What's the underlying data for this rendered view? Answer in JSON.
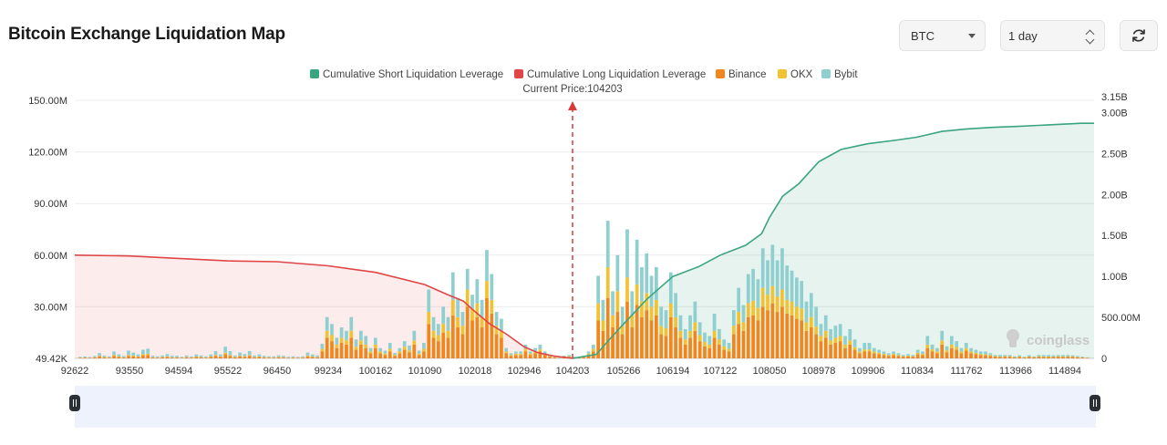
{
  "header": {
    "title": "Bitcoin Exchange Liquidation Map",
    "coin_select": "BTC",
    "range_select": "1 day",
    "refresh_icon": "refresh-icon"
  },
  "colors": {
    "short_cum": "#3aa57e",
    "long_cum": "#e04646",
    "binance": "#f0861c",
    "okx": "#f2c230",
    "bybit": "#8fcfd0"
  },
  "watermark": "coinglass",
  "chart_data": {
    "type": "bar",
    "title": "Bitcoin Exchange Liquidation Map",
    "legend": [
      "Cumulative Short Liquidation Leverage",
      "Cumulative Long Liquidation Leverage",
      "Binance",
      "OKX",
      "Bybit"
    ],
    "legend_position": "top-center",
    "current_price_label": "Current Price:104203",
    "current_price": 104203,
    "x_ticks": [
      "92622",
      "93550",
      "94594",
      "95522",
      "96450",
      "99234",
      "100162",
      "101090",
      "102018",
      "102946",
      "104203",
      "105266",
      "106194",
      "107122",
      "108050",
      "108978",
      "109906",
      "110834",
      "111762",
      "113966",
      "114894"
    ],
    "left_axis": {
      "ticks": [
        "49.42K",
        "30.00M",
        "60.00M",
        "90.00M",
        "120.00M",
        "150.00M"
      ],
      "ylim": [
        0,
        150
      ]
    },
    "right_axis": {
      "ticks": [
        "0",
        "500.00M",
        "1.00B",
        "1.50B",
        "2.00B",
        "2.50B",
        "3.00B",
        "3.15B"
      ],
      "ylim": [
        0,
        3.15
      ]
    },
    "bars_unit": "M USD",
    "stacked_series": [
      {
        "name": "Binance",
        "values": [
          0.3,
          0.4,
          0.3,
          0.5,
          1.2,
          0.6,
          0.4,
          1.5,
          0.8,
          0.5,
          1.5,
          1.2,
          0.8,
          1.8,
          2.0,
          0.5,
          0.4,
          0.6,
          0.9,
          0.5,
          0.5,
          0.3,
          0.6,
          0.4,
          0.8,
          0.6,
          0.4,
          0.8,
          1.5,
          0.8,
          2.5,
          1.5,
          0.6,
          1.2,
          0.9,
          1.5,
          0.6,
          0.8,
          0.5,
          0.4,
          0.4,
          0.6,
          0.5,
          0.3,
          0.4,
          0.3,
          0.4,
          1.2,
          0.8,
          0.6,
          4.0,
          12.0,
          10.0,
          6.0,
          9.0,
          8.0,
          12.0,
          5.0,
          8.0,
          6.0,
          3.0,
          6.0,
          3.0,
          2.0,
          4.0,
          1.5,
          3.0,
          5.0,
          3.5,
          8.0,
          2.0,
          4.0,
          20.0,
          12.0,
          10.0,
          15.0,
          12.0,
          25.0,
          18.0,
          14.0,
          30.0,
          22.0,
          24.0,
          18.0,
          35.0,
          26.0,
          14.0,
          12.0,
          3.0,
          1.5,
          2.0,
          2.0,
          4.0,
          2.0,
          3.0,
          4.0,
          2.0,
          1.0,
          0.5,
          0.2,
          0.8,
          1.0,
          0.5,
          0.3,
          0.6,
          2.0,
          4.0,
          22.0,
          16.0,
          35.0,
          18.0,
          27.0,
          14.0,
          33.0,
          18.0,
          31.0,
          24.0,
          28.0,
          22.0,
          25.0,
          14.0,
          13.0,
          24.0,
          18.0,
          12.0,
          8.0,
          12.0,
          16.0,
          10.0,
          7.0,
          6.0,
          12.0,
          8.0,
          5.0,
          4.0,
          14.0,
          20.0,
          16.0,
          24.0,
          25.0,
          22.0,
          30.0,
          28.0,
          32.0,
          27.0,
          30.0,
          26.0,
          25.0,
          23.0,
          22.0,
          16.0,
          18.0,
          14.0,
          10.0,
          12.0,
          8.0,
          9.0,
          10.0,
          6.0,
          8.0,
          5.0,
          3.0,
          4.0,
          4.0,
          3.0,
          2.5,
          2.0,
          1.5,
          2.0,
          1.5,
          1.0,
          1.2,
          1.0,
          2.5,
          2.0,
          6.0,
          4.0,
          3.0,
          8.0,
          3.5,
          6.0,
          5.0,
          3.0,
          4.5,
          3.0,
          2.5,
          2.0,
          1.8,
          1.5,
          1.0,
          0.8,
          1.0,
          1.0,
          0.6,
          0.8,
          0.5,
          0.8,
          0.6,
          1.0,
          0.8,
          0.8,
          0.8,
          1.0,
          0.8,
          1.0,
          0.8,
          0.6,
          0.5,
          0.3
        ]
      },
      {
        "name": "OKX",
        "values": [
          0.1,
          0.1,
          0.1,
          0.2,
          0.4,
          0.2,
          0.2,
          0.5,
          0.3,
          0.2,
          0.5,
          0.4,
          0.3,
          0.6,
          0.7,
          0.2,
          0.2,
          0.2,
          0.3,
          0.2,
          0.2,
          0.1,
          0.2,
          0.2,
          0.3,
          0.2,
          0.2,
          0.3,
          0.5,
          0.3,
          0.8,
          0.5,
          0.2,
          0.4,
          0.3,
          0.5,
          0.2,
          0.3,
          0.2,
          0.2,
          0.2,
          0.2,
          0.2,
          0.1,
          0.2,
          0.1,
          0.2,
          0.4,
          0.3,
          0.2,
          1.5,
          4.0,
          3.5,
          2.0,
          3.0,
          2.5,
          4.0,
          1.8,
          2.5,
          2.0,
          1.0,
          2.0,
          1.0,
          0.8,
          1.5,
          0.5,
          1.0,
          1.8,
          1.2,
          2.5,
          0.8,
          1.5,
          7.0,
          4.0,
          3.5,
          5.0,
          4.0,
          9.0,
          6.0,
          5.0,
          10.0,
          7.0,
          8.0,
          6.0,
          10.0,
          8.0,
          5.0,
          4.0,
          1.0,
          0.5,
          0.8,
          0.8,
          1.5,
          0.8,
          1.0,
          1.2,
          0.8,
          0.4,
          0.2,
          0.1,
          0.3,
          0.3,
          0.2,
          0.1,
          0.2,
          0.8,
          1.5,
          10.0,
          6.0,
          18.0,
          7.0,
          12.0,
          5.0,
          14.0,
          7.0,
          12.0,
          9.0,
          10.0,
          8.0,
          9.0,
          5.0,
          4.5,
          8.0,
          6.0,
          4.0,
          3.0,
          4.0,
          5.0,
          3.5,
          2.5,
          2.0,
          4.0,
          3.0,
          2.0,
          1.5,
          5.0,
          7.0,
          5.0,
          8.0,
          8.5,
          7.5,
          11.0,
          9.0,
          10.0,
          9.0,
          10.0,
          8.0,
          8.0,
          7.0,
          7.0,
          5.0,
          6.0,
          4.5,
          3.0,
          4.0,
          2.5,
          3.0,
          3.0,
          2.0,
          2.5,
          1.5,
          1.0,
          1.2,
          1.2,
          1.0,
          0.8,
          0.6,
          0.5,
          0.6,
          0.5,
          0.3,
          0.4,
          0.3,
          0.8,
          0.6,
          2.0,
          1.3,
          1.0,
          2.5,
          1.2,
          2.0,
          1.6,
          1.0,
          1.5,
          1.0,
          0.8,
          0.6,
          0.6,
          0.5,
          0.3,
          0.3,
          0.3,
          0.3,
          0.2,
          0.3,
          0.2,
          0.3,
          0.2,
          0.3,
          0.3,
          0.3,
          0.3,
          0.3,
          0.3,
          0.3,
          0.3,
          0.2,
          0.2,
          0.1
        ]
      },
      {
        "name": "Bybit",
        "values": [
          0.5,
          0.6,
          0.4,
          0.7,
          1.5,
          0.8,
          0.6,
          2.0,
          1.2,
          0.7,
          2.5,
          1.8,
          1.2,
          2.6,
          2.9,
          0.8,
          0.6,
          0.9,
          1.3,
          0.8,
          0.8,
          0.5,
          0.9,
          0.6,
          1.2,
          0.9,
          0.6,
          1.2,
          2.2,
          1.2,
          3.5,
          2.2,
          0.9,
          1.8,
          1.3,
          2.2,
          0.9,
          1.2,
          0.8,
          0.6,
          0.6,
          0.9,
          0.8,
          0.5,
          0.6,
          0.5,
          0.6,
          1.8,
          1.2,
          0.9,
          3.0,
          8.0,
          6.5,
          4.0,
          6.0,
          5.5,
          8.0,
          4.2,
          5.5,
          5.0,
          2.0,
          4.0,
          2.0,
          1.7,
          3.5,
          1.2,
          2.0,
          3.2,
          2.8,
          5.5,
          1.7,
          3.5,
          13.0,
          8.0,
          6.5,
          10.0,
          8.0,
          16.0,
          11.0,
          8.0,
          12.0,
          8.0,
          14.0,
          10.0,
          18.0,
          15.0,
          8.0,
          7.0,
          2.0,
          1.0,
          1.2,
          1.2,
          2.5,
          1.2,
          2.0,
          2.8,
          1.2,
          0.6,
          0.3,
          0.2,
          0.5,
          0.7,
          0.3,
          0.2,
          0.4,
          1.2,
          2.5,
          16.0,
          12.0,
          27.0,
          14.0,
          21.0,
          11.0,
          28.0,
          14.0,
          26.0,
          20.0,
          23.0,
          18.0,
          19.0,
          11.0,
          10.5,
          18.0,
          14.0,
          9.0,
          6.0,
          9.0,
          12.0,
          7.5,
          5.5,
          5.0,
          10.0,
          6.0,
          4.0,
          3.5,
          9.0,
          14.0,
          10.0,
          17.0,
          18.5,
          16.5,
          23.0,
          20.0,
          24.0,
          21.0,
          24.0,
          20.0,
          18.0,
          17.0,
          16.0,
          12.0,
          14.0,
          11.5,
          7.0,
          9.0,
          6.5,
          7.0,
          7.0,
          5.0,
          6.5,
          4.5,
          2.0,
          3.8,
          3.8,
          2.0,
          1.7,
          1.4,
          1.0,
          1.4,
          1.0,
          0.7,
          0.9,
          0.7,
          1.7,
          1.4,
          5.0,
          2.7,
          2.0,
          5.5,
          2.3,
          5.0,
          3.4,
          2.0,
          3.0,
          2.0,
          1.7,
          1.4,
          1.6,
          1.0,
          0.7,
          0.9,
          0.7,
          0.7,
          0.4,
          0.7,
          0.3,
          0.7,
          0.4,
          0.7,
          0.9,
          0.9,
          0.7,
          0.7,
          0.9,
          0.7,
          0.7,
          0.6,
          0.3,
          0.2
        ]
      }
    ],
    "cumulative_long": {
      "name": "Cumulative Long Liquidation Leverage",
      "unit": "B USD",
      "points": [
        [
          92622,
          1.26
        ],
        [
          93550,
          1.25
        ],
        [
          94594,
          1.22
        ],
        [
          95522,
          1.19
        ],
        [
          96450,
          1.18
        ],
        [
          99234,
          1.13
        ],
        [
          100162,
          1.05
        ],
        [
          101090,
          0.9
        ],
        [
          101500,
          0.78
        ],
        [
          101800,
          0.7
        ],
        [
          102018,
          0.57
        ],
        [
          102300,
          0.42
        ],
        [
          102600,
          0.3
        ],
        [
          102946,
          0.14
        ],
        [
          103300,
          0.07
        ],
        [
          103700,
          0.03
        ],
        [
          104203,
          0.0
        ]
      ]
    },
    "cumulative_short": {
      "name": "Cumulative Short Liquidation Leverage",
      "unit": "B USD",
      "points": [
        [
          104203,
          0.0
        ],
        [
          104700,
          0.05
        ],
        [
          105000,
          0.25
        ],
        [
          105266,
          0.42
        ],
        [
          105700,
          0.72
        ],
        [
          106194,
          1.0
        ],
        [
          106700,
          1.12
        ],
        [
          107122,
          1.26
        ],
        [
          107600,
          1.38
        ],
        [
          107900,
          1.52
        ],
        [
          108050,
          1.72
        ],
        [
          108300,
          1.98
        ],
        [
          108600,
          2.13
        ],
        [
          108978,
          2.4
        ],
        [
          109400,
          2.55
        ],
        [
          109906,
          2.62
        ],
        [
          110400,
          2.66
        ],
        [
          110834,
          2.7
        ],
        [
          111300,
          2.77
        ],
        [
          111762,
          2.8
        ],
        [
          113000,
          2.82
        ],
        [
          113966,
          2.83
        ],
        [
          114894,
          2.86
        ],
        [
          115200,
          2.87
        ]
      ]
    }
  }
}
